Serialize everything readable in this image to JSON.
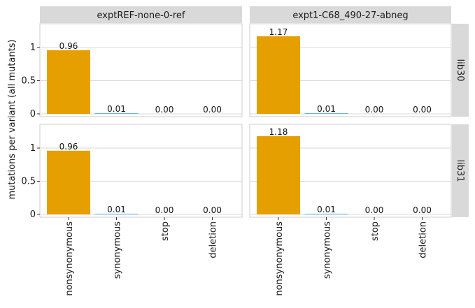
{
  "chart_data": {
    "type": "bar",
    "ylabel": "mutations per variant (all mutants)",
    "categories": [
      "nonsynonymous",
      "synonymous",
      "stop",
      "deletion"
    ],
    "facet_columns": [
      "exptREF-none-0-ref",
      "expt1-C68_490-27-abneg"
    ],
    "facet_rows": [
      "lib30",
      "lib31"
    ],
    "y_ticks": [
      "0",
      "0.5",
      "1"
    ],
    "ylim": [
      0,
      1.35
    ],
    "grid": true,
    "colors": {
      "nonsynonymous": "#E69F00",
      "synonymous": "#56B4E9",
      "stop": "#009E73",
      "deletion": "#F0E442",
      "strip_bg": "#d9d9d9",
      "grid": "#d9d9d9"
    },
    "panels": [
      {
        "column": "exptREF-none-0-ref",
        "row": "lib30",
        "values": [
          0.96,
          0.01,
          0.0,
          0.0
        ],
        "labels": [
          "0.96",
          "0.01",
          "0.00",
          "0.00"
        ]
      },
      {
        "column": "expt1-C68_490-27-abneg",
        "row": "lib30",
        "values": [
          1.17,
          0.01,
          0.0,
          0.0
        ],
        "labels": [
          "1.17",
          "0.01",
          "0.00",
          "0.00"
        ]
      },
      {
        "column": "exptREF-none-0-ref",
        "row": "lib31",
        "values": [
          0.96,
          0.01,
          0.0,
          0.0
        ],
        "labels": [
          "0.96",
          "0.01",
          "0.00",
          "0.00"
        ]
      },
      {
        "column": "expt1-C68_490-27-abneg",
        "row": "lib31",
        "values": [
          1.18,
          0.01,
          0.0,
          0.0
        ],
        "labels": [
          "1.18",
          "0.01",
          "0.00",
          "0.00"
        ]
      }
    ]
  }
}
